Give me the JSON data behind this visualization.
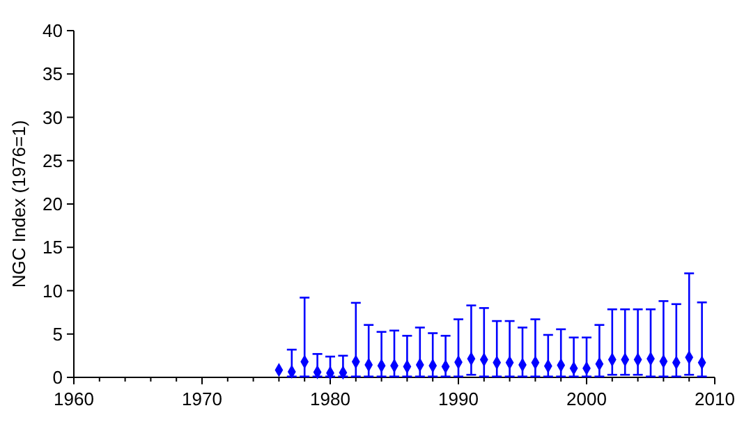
{
  "chart_data": {
    "type": "scatter",
    "ylabel": "NGC Index (1976=1)",
    "marker": "diamond",
    "grid": false,
    "xlim": [
      1960,
      2010
    ],
    "xticks": [
      1960,
      1970,
      1980,
      1990,
      2000,
      2010
    ],
    "ylim": [
      0,
      40
    ],
    "yticks": [
      0,
      5,
      10,
      15,
      20,
      25,
      30,
      35,
      40
    ],
    "series": [
      {
        "color": "#0000ff",
        "x": [
          1976,
          1977,
          1978,
          1979,
          1980,
          1981,
          1982,
          1983,
          1984,
          1985,
          1986,
          1987,
          1988,
          1989,
          1990,
          1991,
          1992,
          1993,
          1994,
          1995,
          1996,
          1997,
          1998,
          1999,
          2000,
          2001,
          2002,
          2003,
          2004,
          2005,
          2006,
          2007,
          2008,
          2009
        ],
        "values": [
          0.85,
          0.65,
          1.8,
          0.6,
          0.5,
          0.55,
          1.8,
          1.45,
          1.35,
          1.35,
          1.25,
          1.45,
          1.35,
          1.25,
          1.75,
          2.15,
          2.05,
          1.7,
          1.7,
          1.45,
          1.7,
          1.3,
          1.4,
          1.05,
          1.05,
          1.55,
          2.05,
          2.05,
          2.05,
          2.15,
          1.85,
          1.7,
          2.3,
          1.7
        ],
        "errors": [
          null,
          [
            0.1,
            3.2
          ],
          [
            0.1,
            9.2
          ],
          [
            0.1,
            2.7
          ],
          [
            0.1,
            2.4
          ],
          [
            0.1,
            2.5
          ],
          [
            0.1,
            8.6
          ],
          [
            0.1,
            6.05
          ],
          [
            0.1,
            5.25
          ],
          [
            0.1,
            5.4
          ],
          [
            0.1,
            4.8
          ],
          [
            0.1,
            5.75
          ],
          [
            0.1,
            5.1
          ],
          [
            0.1,
            4.8
          ],
          [
            0.1,
            6.7
          ],
          [
            0.3,
            8.3
          ],
          [
            0.1,
            8.0
          ],
          [
            0.1,
            6.5
          ],
          [
            0.1,
            6.5
          ],
          [
            0.1,
            5.75
          ],
          [
            0.1,
            6.7
          ],
          [
            0.1,
            4.9
          ],
          [
            0.1,
            5.55
          ],
          [
            0.1,
            4.6
          ],
          [
            0.1,
            4.6
          ],
          [
            0.1,
            6.05
          ],
          [
            0.3,
            7.85
          ],
          [
            0.3,
            7.85
          ],
          [
            0.3,
            7.85
          ],
          [
            0.1,
            7.85
          ],
          [
            0.1,
            8.8
          ],
          [
            0.1,
            8.45
          ],
          [
            0.3,
            12.0
          ],
          [
            0.1,
            8.65
          ]
        ]
      }
    ]
  }
}
